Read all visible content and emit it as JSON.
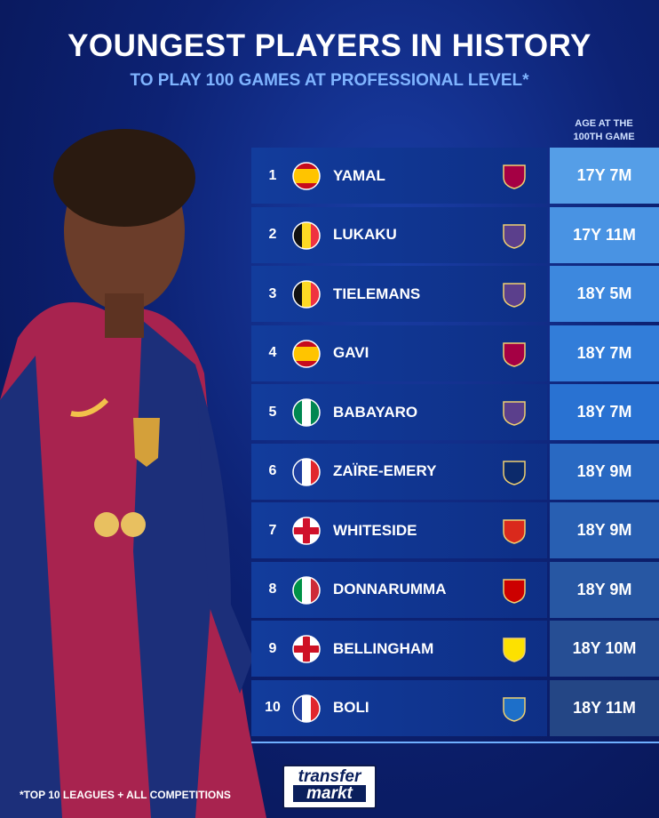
{
  "header": {
    "title": "YOUNGEST PLAYERS IN HISTORY",
    "subtitle": "TO PLAY 100 GAMES AT PROFESSIONAL LEVEL*"
  },
  "table": {
    "column_header": [
      "AGE AT THE",
      "100TH GAME"
    ],
    "rows": [
      {
        "rank": 1,
        "name": "YAMAL",
        "age": "17Y 7M"
      },
      {
        "rank": 2,
        "name": "LUKAKU",
        "age": "17Y 11M"
      },
      {
        "rank": 3,
        "name": "TIELEMANS",
        "age": "18Y 5M"
      },
      {
        "rank": 4,
        "name": "GAVI",
        "age": "18Y 7M"
      },
      {
        "rank": 5,
        "name": "BABAYARO",
        "age": "18Y 7M"
      },
      {
        "rank": 6,
        "name": "ZAÏRE-EMERY",
        "age": "18Y 9M"
      },
      {
        "rank": 7,
        "name": "WHITESIDE",
        "age": "18Y 9M"
      },
      {
        "rank": 8,
        "name": "DONNARUMMA",
        "age": "18Y 9M"
      },
      {
        "rank": 9,
        "name": "BELLINGHAM",
        "age": "18Y 10M"
      },
      {
        "rank": 10,
        "name": "BOLI",
        "age": "18Y 11M"
      }
    ]
  },
  "footer": {
    "note": "*TOP 10 LEAGUES + ALL COMPETITIONS",
    "logo": [
      "transfer",
      "markt"
    ]
  }
}
